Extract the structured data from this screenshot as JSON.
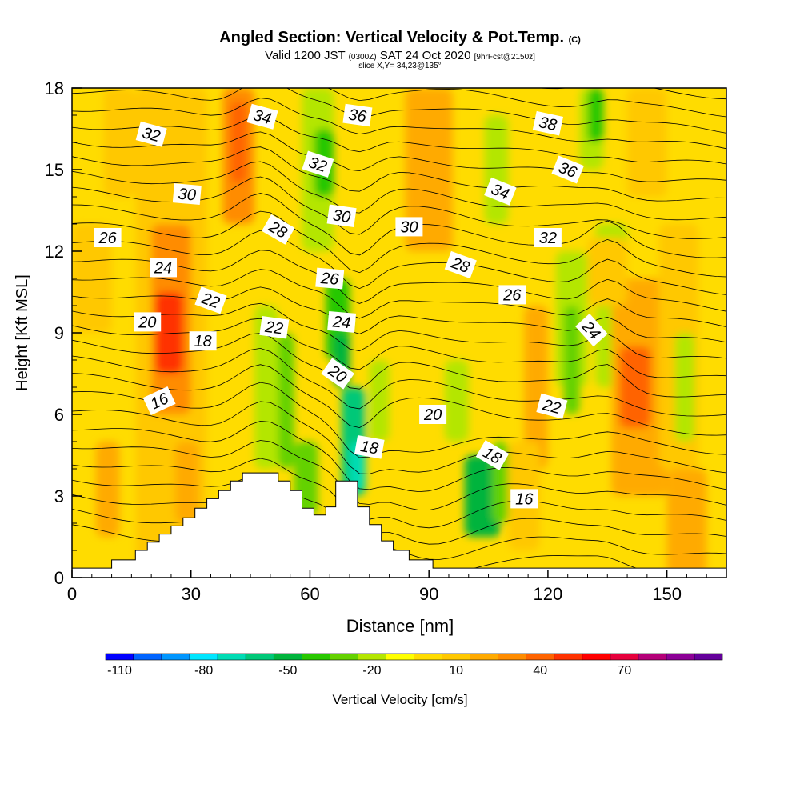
{
  "header": {
    "title": "Angled Section: Vertical Velocity & Pot.Temp.",
    "title_mark": "(C)",
    "valid_prefix": "Valid 1200 JST",
    "valid_utc": "(0300Z)",
    "valid_date": "SAT 24 Oct 2020",
    "fcst": "[9hrFcst@2150z]",
    "slice": "slice X,Y= 34,23@135°"
  },
  "chart_data": {
    "type": "heatmap",
    "xlabel": "Distance [nm]",
    "ylabel": "Height [Kft MSL]",
    "xlim": [
      0,
      165
    ],
    "ylim": [
      0,
      18
    ],
    "x_ticks": [
      0,
      30,
      60,
      90,
      120,
      150
    ],
    "y_ticks": [
      0,
      3,
      6,
      9,
      12,
      15,
      18
    ],
    "colorbar": {
      "label": "Vertical Velocity [cm/s]",
      "range": [
        -115,
        95
      ],
      "step": 10,
      "tick_values": [
        -110,
        -80,
        -50,
        -20,
        10,
        40,
        70
      ],
      "tick_labels": [
        "-110",
        "-80",
        "-50",
        "-20",
        "10",
        "40",
        "70"
      ],
      "colors": [
        "#0000ff",
        "#0064ff",
        "#0096ff",
        "#00e6ff",
        "#00dcb4",
        "#00c878",
        "#00b43c",
        "#28c800",
        "#64d200",
        "#b4e600",
        "#ffff00",
        "#ffdc00",
        "#ffc800",
        "#ffaa00",
        "#ff8c00",
        "#ff6400",
        "#ff3200",
        "#ff0000",
        "#e6003c",
        "#b40078",
        "#8c0096",
        "#64009b"
      ]
    },
    "terrain": [
      [
        0,
        0.35
      ],
      [
        10,
        0.35
      ],
      [
        10,
        0.65
      ],
      [
        16,
        0.65
      ],
      [
        16,
        1.0
      ],
      [
        19,
        1.0
      ],
      [
        19,
        1.3
      ],
      [
        22,
        1.3
      ],
      [
        22,
        1.6
      ],
      [
        25,
        1.6
      ],
      [
        25,
        1.9
      ],
      [
        28,
        1.9
      ],
      [
        28,
        2.2
      ],
      [
        31,
        2.2
      ],
      [
        31,
        2.55
      ],
      [
        34,
        2.55
      ],
      [
        34,
        2.9
      ],
      [
        37,
        2.9
      ],
      [
        37,
        3.2
      ],
      [
        40,
        3.2
      ],
      [
        40,
        3.55
      ],
      [
        43,
        3.55
      ],
      [
        43,
        3.85
      ],
      [
        52,
        3.85
      ],
      [
        52,
        3.55
      ],
      [
        55,
        3.55
      ],
      [
        55,
        3.2
      ],
      [
        58,
        3.2
      ],
      [
        58,
        2.55
      ],
      [
        61,
        2.55
      ],
      [
        61,
        2.3
      ],
      [
        64,
        2.3
      ],
      [
        64,
        2.6
      ],
      [
        66.5,
        2.6
      ],
      [
        66.5,
        3.55
      ],
      [
        72,
        3.55
      ],
      [
        72,
        2.6
      ],
      [
        75,
        2.6
      ],
      [
        75,
        1.95
      ],
      [
        78,
        1.95
      ],
      [
        78,
        1.35
      ],
      [
        81,
        1.35
      ],
      [
        81,
        1.0
      ],
      [
        85,
        1.0
      ],
      [
        85,
        0.65
      ],
      [
        91,
        0.65
      ],
      [
        91,
        0.35
      ],
      [
        165,
        0.35
      ]
    ],
    "theta_contour_labels": [
      {
        "v": "32",
        "x": 20,
        "y": 16.3,
        "rot": 15
      },
      {
        "v": "34",
        "x": 48,
        "y": 16.95,
        "rot": 15
      },
      {
        "v": "36",
        "x": 72,
        "y": 17.0,
        "rot": 8
      },
      {
        "v": "38",
        "x": 120,
        "y": 16.7,
        "rot": 12
      },
      {
        "v": "30",
        "x": 29,
        "y": 14.1,
        "rot": 5
      },
      {
        "v": "32",
        "x": 62,
        "y": 15.2,
        "rot": 18
      },
      {
        "v": "34",
        "x": 108,
        "y": 14.2,
        "rot": 22
      },
      {
        "v": "36",
        "x": 125,
        "y": 15.0,
        "rot": 22
      },
      {
        "v": "26",
        "x": 9,
        "y": 12.5,
        "rot": 0
      },
      {
        "v": "28",
        "x": 52,
        "y": 12.8,
        "rot": 30
      },
      {
        "v": "30",
        "x": 68,
        "y": 13.3,
        "rot": 8
      },
      {
        "v": "30",
        "x": 85,
        "y": 12.9,
        "rot": 0
      },
      {
        "v": "32",
        "x": 120,
        "y": 12.5,
        "rot": 0
      },
      {
        "v": "24",
        "x": 23,
        "y": 11.4,
        "rot": 0
      },
      {
        "v": "26",
        "x": 65,
        "y": 11.0,
        "rot": 5
      },
      {
        "v": "28",
        "x": 98,
        "y": 11.5,
        "rot": 20
      },
      {
        "v": "26",
        "x": 111,
        "y": 10.4,
        "rot": 0
      },
      {
        "v": "22",
        "x": 35,
        "y": 10.2,
        "rot": 20
      },
      {
        "v": "20",
        "x": 19,
        "y": 9.4,
        "rot": 0
      },
      {
        "v": "18",
        "x": 33,
        "y": 8.7,
        "rot": 0
      },
      {
        "v": "22",
        "x": 51,
        "y": 9.2,
        "rot": 8
      },
      {
        "v": "24",
        "x": 68,
        "y": 9.4,
        "rot": 5
      },
      {
        "v": "24",
        "x": 131,
        "y": 9.1,
        "rot": 48
      },
      {
        "v": "20",
        "x": 67,
        "y": 7.5,
        "rot": 35
      },
      {
        "v": "16",
        "x": 22,
        "y": 6.5,
        "rot": -25
      },
      {
        "v": "20",
        "x": 91,
        "y": 6.0,
        "rot": 0
      },
      {
        "v": "22",
        "x": 121,
        "y": 6.3,
        "rot": 15
      },
      {
        "v": "18",
        "x": 75,
        "y": 4.8,
        "rot": 10
      },
      {
        "v": "18",
        "x": 106,
        "y": 4.5,
        "rot": 30
      },
      {
        "v": "16",
        "x": 114,
        "y": 2.9,
        "rot": 0
      }
    ]
  }
}
